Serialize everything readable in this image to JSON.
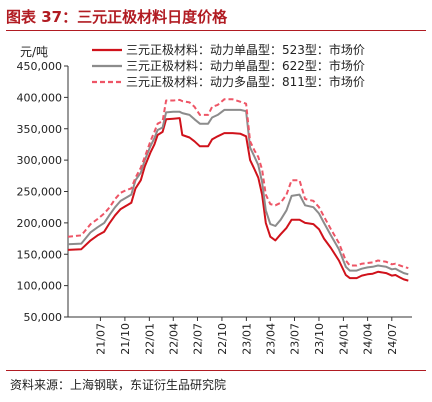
{
  "header": {
    "title": "图表 37：三元正极材料日度价格"
  },
  "footer": {
    "source": "资料来源：上海钢联，东证衍生品研究院"
  },
  "chart_data": {
    "type": "line",
    "title": "",
    "xlabel": "",
    "ylabel": "元/吨",
    "ylim": [
      50000,
      450000
    ],
    "yticks": [
      50000,
      100000,
      150000,
      200000,
      250000,
      300000,
      350000,
      400000,
      450000
    ],
    "ytick_labels": [
      "50,000",
      "100,000",
      "150,000",
      "200,000",
      "250,000",
      "300,000",
      "350,000",
      "400,000",
      "450,000"
    ],
    "x_range": [
      "2021-03-01",
      "2024-09-15"
    ],
    "xticks": [
      "2021-07-01",
      "2021-10-01",
      "2022-01-01",
      "2022-04-01",
      "2022-07-01",
      "2022-10-01",
      "2023-01-01",
      "2023-04-01",
      "2023-07-01",
      "2023-10-01",
      "2024-01-01",
      "2024-04-01",
      "2024-07-01"
    ],
    "xtick_labels": [
      "21/07",
      "21/10",
      "22/01",
      "22/04",
      "22/07",
      "22/10",
      "23/01",
      "23/04",
      "23/07",
      "23/10",
      "24/01",
      "24/04",
      "24/07"
    ],
    "legend_position": "top",
    "grid": false,
    "series": [
      {
        "name": "三元正极材料：动力单晶型：523型：市场价",
        "color": "#d0121b",
        "dash": "solid",
        "points": [
          [
            "2021-03-01",
            157000
          ],
          [
            "2021-04-20",
            158000
          ],
          [
            "2021-05-25",
            172000
          ],
          [
            "2021-06-20",
            180000
          ],
          [
            "2021-07-15",
            186000
          ],
          [
            "2021-08-05",
            200000
          ],
          [
            "2021-08-25",
            212000
          ],
          [
            "2021-09-15",
            222000
          ],
          [
            "2021-10-05",
            227000
          ],
          [
            "2021-10-25",
            232000
          ],
          [
            "2021-11-10",
            255000
          ],
          [
            "2021-11-30",
            268000
          ],
          [
            "2021-12-15",
            290000
          ],
          [
            "2022-01-05",
            312000
          ],
          [
            "2022-01-20",
            325000
          ],
          [
            "2022-02-01",
            340000
          ],
          [
            "2022-02-20",
            345000
          ],
          [
            "2022-03-05",
            365000
          ],
          [
            "2022-04-01",
            366000
          ],
          [
            "2022-04-25",
            367000
          ],
          [
            "2022-05-05",
            340000
          ],
          [
            "2022-06-01",
            336000
          ],
          [
            "2022-06-20",
            330000
          ],
          [
            "2022-07-10",
            322000
          ],
          [
            "2022-08-10",
            322000
          ],
          [
            "2022-08-25",
            333000
          ],
          [
            "2022-09-15",
            338000
          ],
          [
            "2022-10-10",
            343000
          ],
          [
            "2022-11-10",
            343000
          ],
          [
            "2022-12-10",
            342000
          ],
          [
            "2022-12-31",
            338000
          ],
          [
            "2023-01-15",
            300000
          ],
          [
            "2023-02-01",
            285000
          ],
          [
            "2023-02-15",
            272000
          ],
          [
            "2023-03-01",
            245000
          ],
          [
            "2023-03-15",
            200000
          ],
          [
            "2023-04-01",
            178000
          ],
          [
            "2023-04-20",
            172000
          ],
          [
            "2023-05-10",
            182000
          ],
          [
            "2023-06-01",
            192000
          ],
          [
            "2023-06-20",
            205000
          ],
          [
            "2023-07-20",
            205000
          ],
          [
            "2023-08-10",
            200000
          ],
          [
            "2023-09-10",
            198000
          ],
          [
            "2023-10-01",
            190000
          ],
          [
            "2023-10-20",
            175000
          ],
          [
            "2023-11-15",
            160000
          ],
          [
            "2023-12-15",
            140000
          ],
          [
            "2024-01-10",
            117000
          ],
          [
            "2024-01-25",
            112000
          ],
          [
            "2024-02-20",
            112000
          ],
          [
            "2024-03-10",
            116000
          ],
          [
            "2024-04-01",
            118000
          ],
          [
            "2024-04-20",
            119000
          ],
          [
            "2024-05-10",
            122000
          ],
          [
            "2024-06-10",
            120000
          ],
          [
            "2024-07-01",
            116000
          ],
          [
            "2024-07-15",
            117000
          ],
          [
            "2024-08-01",
            113000
          ],
          [
            "2024-08-15",
            110000
          ],
          [
            "2024-09-01",
            108000
          ]
        ]
      },
      {
        "name": "三元正极材料：动力单晶型：622型：市场价",
        "color": "#8c8c8c",
        "dash": "solid",
        "points": [
          [
            "2021-03-01",
            166000
          ],
          [
            "2021-04-20",
            167000
          ],
          [
            "2021-05-25",
            185000
          ],
          [
            "2021-06-20",
            193000
          ],
          [
            "2021-07-15",
            200000
          ],
          [
            "2021-08-05",
            213000
          ],
          [
            "2021-08-25",
            225000
          ],
          [
            "2021-09-15",
            235000
          ],
          [
            "2021-10-05",
            240000
          ],
          [
            "2021-10-25",
            245000
          ],
          [
            "2021-11-10",
            268000
          ],
          [
            "2021-11-30",
            280000
          ],
          [
            "2021-12-15",
            300000
          ],
          [
            "2022-01-05",
            322000
          ],
          [
            "2022-01-20",
            335000
          ],
          [
            "2022-02-01",
            348000
          ],
          [
            "2022-02-20",
            352000
          ],
          [
            "2022-03-05",
            376000
          ],
          [
            "2022-04-01",
            377000
          ],
          [
            "2022-04-25",
            377000
          ],
          [
            "2022-05-05",
            375000
          ],
          [
            "2022-06-01",
            372000
          ],
          [
            "2022-06-20",
            365000
          ],
          [
            "2022-07-10",
            358000
          ],
          [
            "2022-08-10",
            358000
          ],
          [
            "2022-08-25",
            368000
          ],
          [
            "2022-09-15",
            372000
          ],
          [
            "2022-10-10",
            380000
          ],
          [
            "2022-11-10",
            380000
          ],
          [
            "2022-12-10",
            380000
          ],
          [
            "2022-12-31",
            378000
          ],
          [
            "2023-01-15",
            320000
          ],
          [
            "2023-02-01",
            305000
          ],
          [
            "2023-02-15",
            292000
          ],
          [
            "2023-03-01",
            265000
          ],
          [
            "2023-03-15",
            220000
          ],
          [
            "2023-04-01",
            198000
          ],
          [
            "2023-04-20",
            195000
          ],
          [
            "2023-05-10",
            205000
          ],
          [
            "2023-06-01",
            220000
          ],
          [
            "2023-06-20",
            243000
          ],
          [
            "2023-07-20",
            245000
          ],
          [
            "2023-08-10",
            228000
          ],
          [
            "2023-09-10",
            225000
          ],
          [
            "2023-10-01",
            215000
          ],
          [
            "2023-10-20",
            200000
          ],
          [
            "2023-11-15",
            180000
          ],
          [
            "2023-12-15",
            158000
          ],
          [
            "2024-01-10",
            130000
          ],
          [
            "2024-01-25",
            124000
          ],
          [
            "2024-02-20",
            124000
          ],
          [
            "2024-03-10",
            127000
          ],
          [
            "2024-04-01",
            129000
          ],
          [
            "2024-04-20",
            130000
          ],
          [
            "2024-05-10",
            132000
          ],
          [
            "2024-06-10",
            130000
          ],
          [
            "2024-07-01",
            126000
          ],
          [
            "2024-07-15",
            127000
          ],
          [
            "2024-08-01",
            123000
          ],
          [
            "2024-08-15",
            120000
          ],
          [
            "2024-09-01",
            118000
          ]
        ]
      },
      {
        "name": "三元正极材料：动力多晶型：811型：市场价",
        "color": "#ee5566",
        "dash": "dashed",
        "points": [
          [
            "2021-03-01",
            178000
          ],
          [
            "2021-04-20",
            180000
          ],
          [
            "2021-05-25",
            198000
          ],
          [
            "2021-06-20",
            206000
          ],
          [
            "2021-07-15",
            215000
          ],
          [
            "2021-08-05",
            225000
          ],
          [
            "2021-08-25",
            238000
          ],
          [
            "2021-09-15",
            248000
          ],
          [
            "2021-10-05",
            252000
          ],
          [
            "2021-10-25",
            255000
          ],
          [
            "2021-11-10",
            272000
          ],
          [
            "2021-11-30",
            288000
          ],
          [
            "2021-12-15",
            305000
          ],
          [
            "2022-01-05",
            330000
          ],
          [
            "2022-01-20",
            345000
          ],
          [
            "2022-02-01",
            358000
          ],
          [
            "2022-02-20",
            362000
          ],
          [
            "2022-03-05",
            395000
          ],
          [
            "2022-04-01",
            395000
          ],
          [
            "2022-04-25",
            396000
          ],
          [
            "2022-05-05",
            394000
          ],
          [
            "2022-06-01",
            392000
          ],
          [
            "2022-06-20",
            385000
          ],
          [
            "2022-07-10",
            372000
          ],
          [
            "2022-08-10",
            372000
          ],
          [
            "2022-08-25",
            385000
          ],
          [
            "2022-09-15",
            388000
          ],
          [
            "2022-10-10",
            397000
          ],
          [
            "2022-11-10",
            397000
          ],
          [
            "2022-12-10",
            393000
          ],
          [
            "2022-12-31",
            390000
          ],
          [
            "2023-01-15",
            330000
          ],
          [
            "2023-02-01",
            315000
          ],
          [
            "2023-02-15",
            305000
          ],
          [
            "2023-03-01",
            285000
          ],
          [
            "2023-03-15",
            245000
          ],
          [
            "2023-04-01",
            230000
          ],
          [
            "2023-04-20",
            228000
          ],
          [
            "2023-05-10",
            232000
          ],
          [
            "2023-06-01",
            245000
          ],
          [
            "2023-06-20",
            268000
          ],
          [
            "2023-07-20",
            268000
          ],
          [
            "2023-08-10",
            238000
          ],
          [
            "2023-09-10",
            235000
          ],
          [
            "2023-10-01",
            225000
          ],
          [
            "2023-10-20",
            210000
          ],
          [
            "2023-11-15",
            190000
          ],
          [
            "2023-12-15",
            168000
          ],
          [
            "2024-01-10",
            140000
          ],
          [
            "2024-01-25",
            132000
          ],
          [
            "2024-02-20",
            132000
          ],
          [
            "2024-03-10",
            135000
          ],
          [
            "2024-04-01",
            136000
          ],
          [
            "2024-04-20",
            137000
          ],
          [
            "2024-05-10",
            140000
          ],
          [
            "2024-06-10",
            138000
          ],
          [
            "2024-07-01",
            134000
          ],
          [
            "2024-07-15",
            135000
          ],
          [
            "2024-08-01",
            132000
          ],
          [
            "2024-08-15",
            130000
          ],
          [
            "2024-09-01",
            128000
          ]
        ]
      }
    ]
  }
}
